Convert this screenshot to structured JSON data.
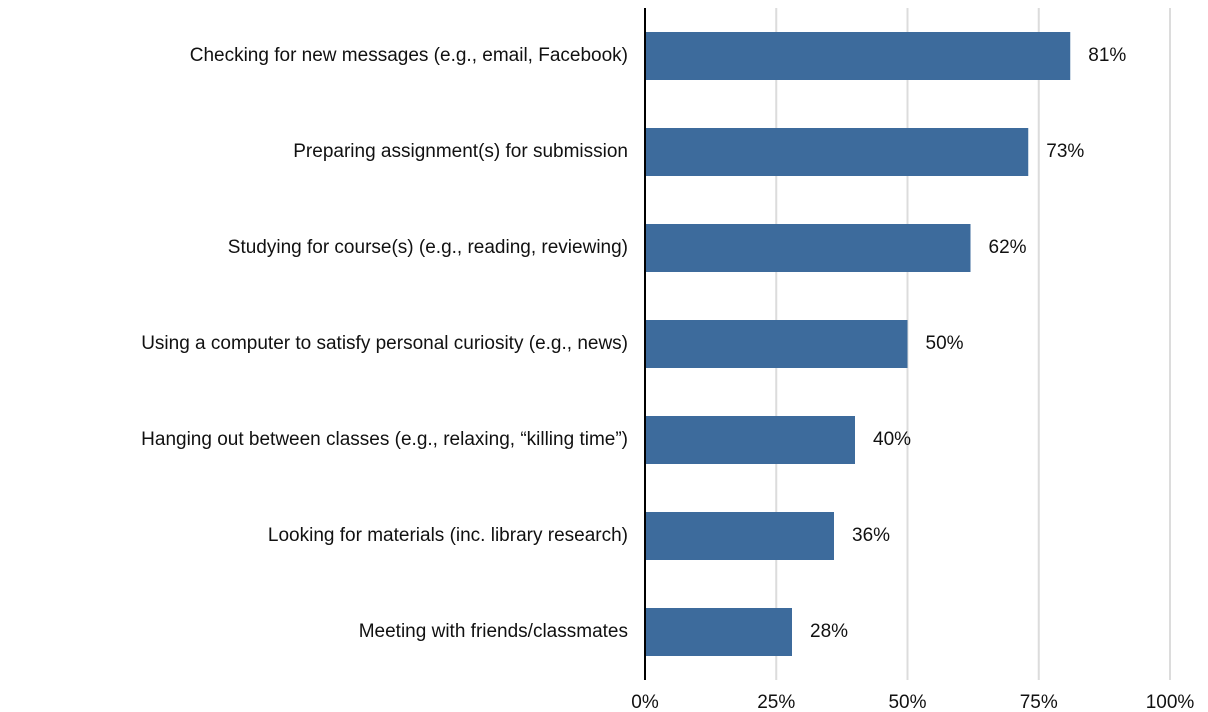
{
  "chart_data": {
    "type": "bar",
    "orientation": "horizontal",
    "categories": [
      "Checking for new messages (e.g., email, Facebook)",
      "Preparing assignment(s) for submission",
      "Studying for course(s) (e.g., reading, reviewing)",
      "Using a computer to satisfy personal curiosity (e.g., news)",
      "Hanging out between classes (e.g., relaxing, “killing time”)",
      "Looking for materials (inc. library research)",
      "Meeting with friends/classmates"
    ],
    "values": [
      81,
      73,
      62,
      50,
      40,
      36,
      28
    ],
    "value_labels": [
      "81%",
      "73%",
      "62%",
      "50%",
      "40%",
      "36%",
      "28%"
    ],
    "color": "#3d6b9c",
    "xlim": [
      0,
      100
    ],
    "xticks": [
      {
        "value": 0,
        "label": "0%"
      },
      {
        "value": 25,
        "label": "25%"
      },
      {
        "value": 50,
        "label": "50%"
      },
      {
        "value": 75,
        "label": "75%"
      },
      {
        "value": 100,
        "label": "100%"
      }
    ],
    "grid": true
  }
}
